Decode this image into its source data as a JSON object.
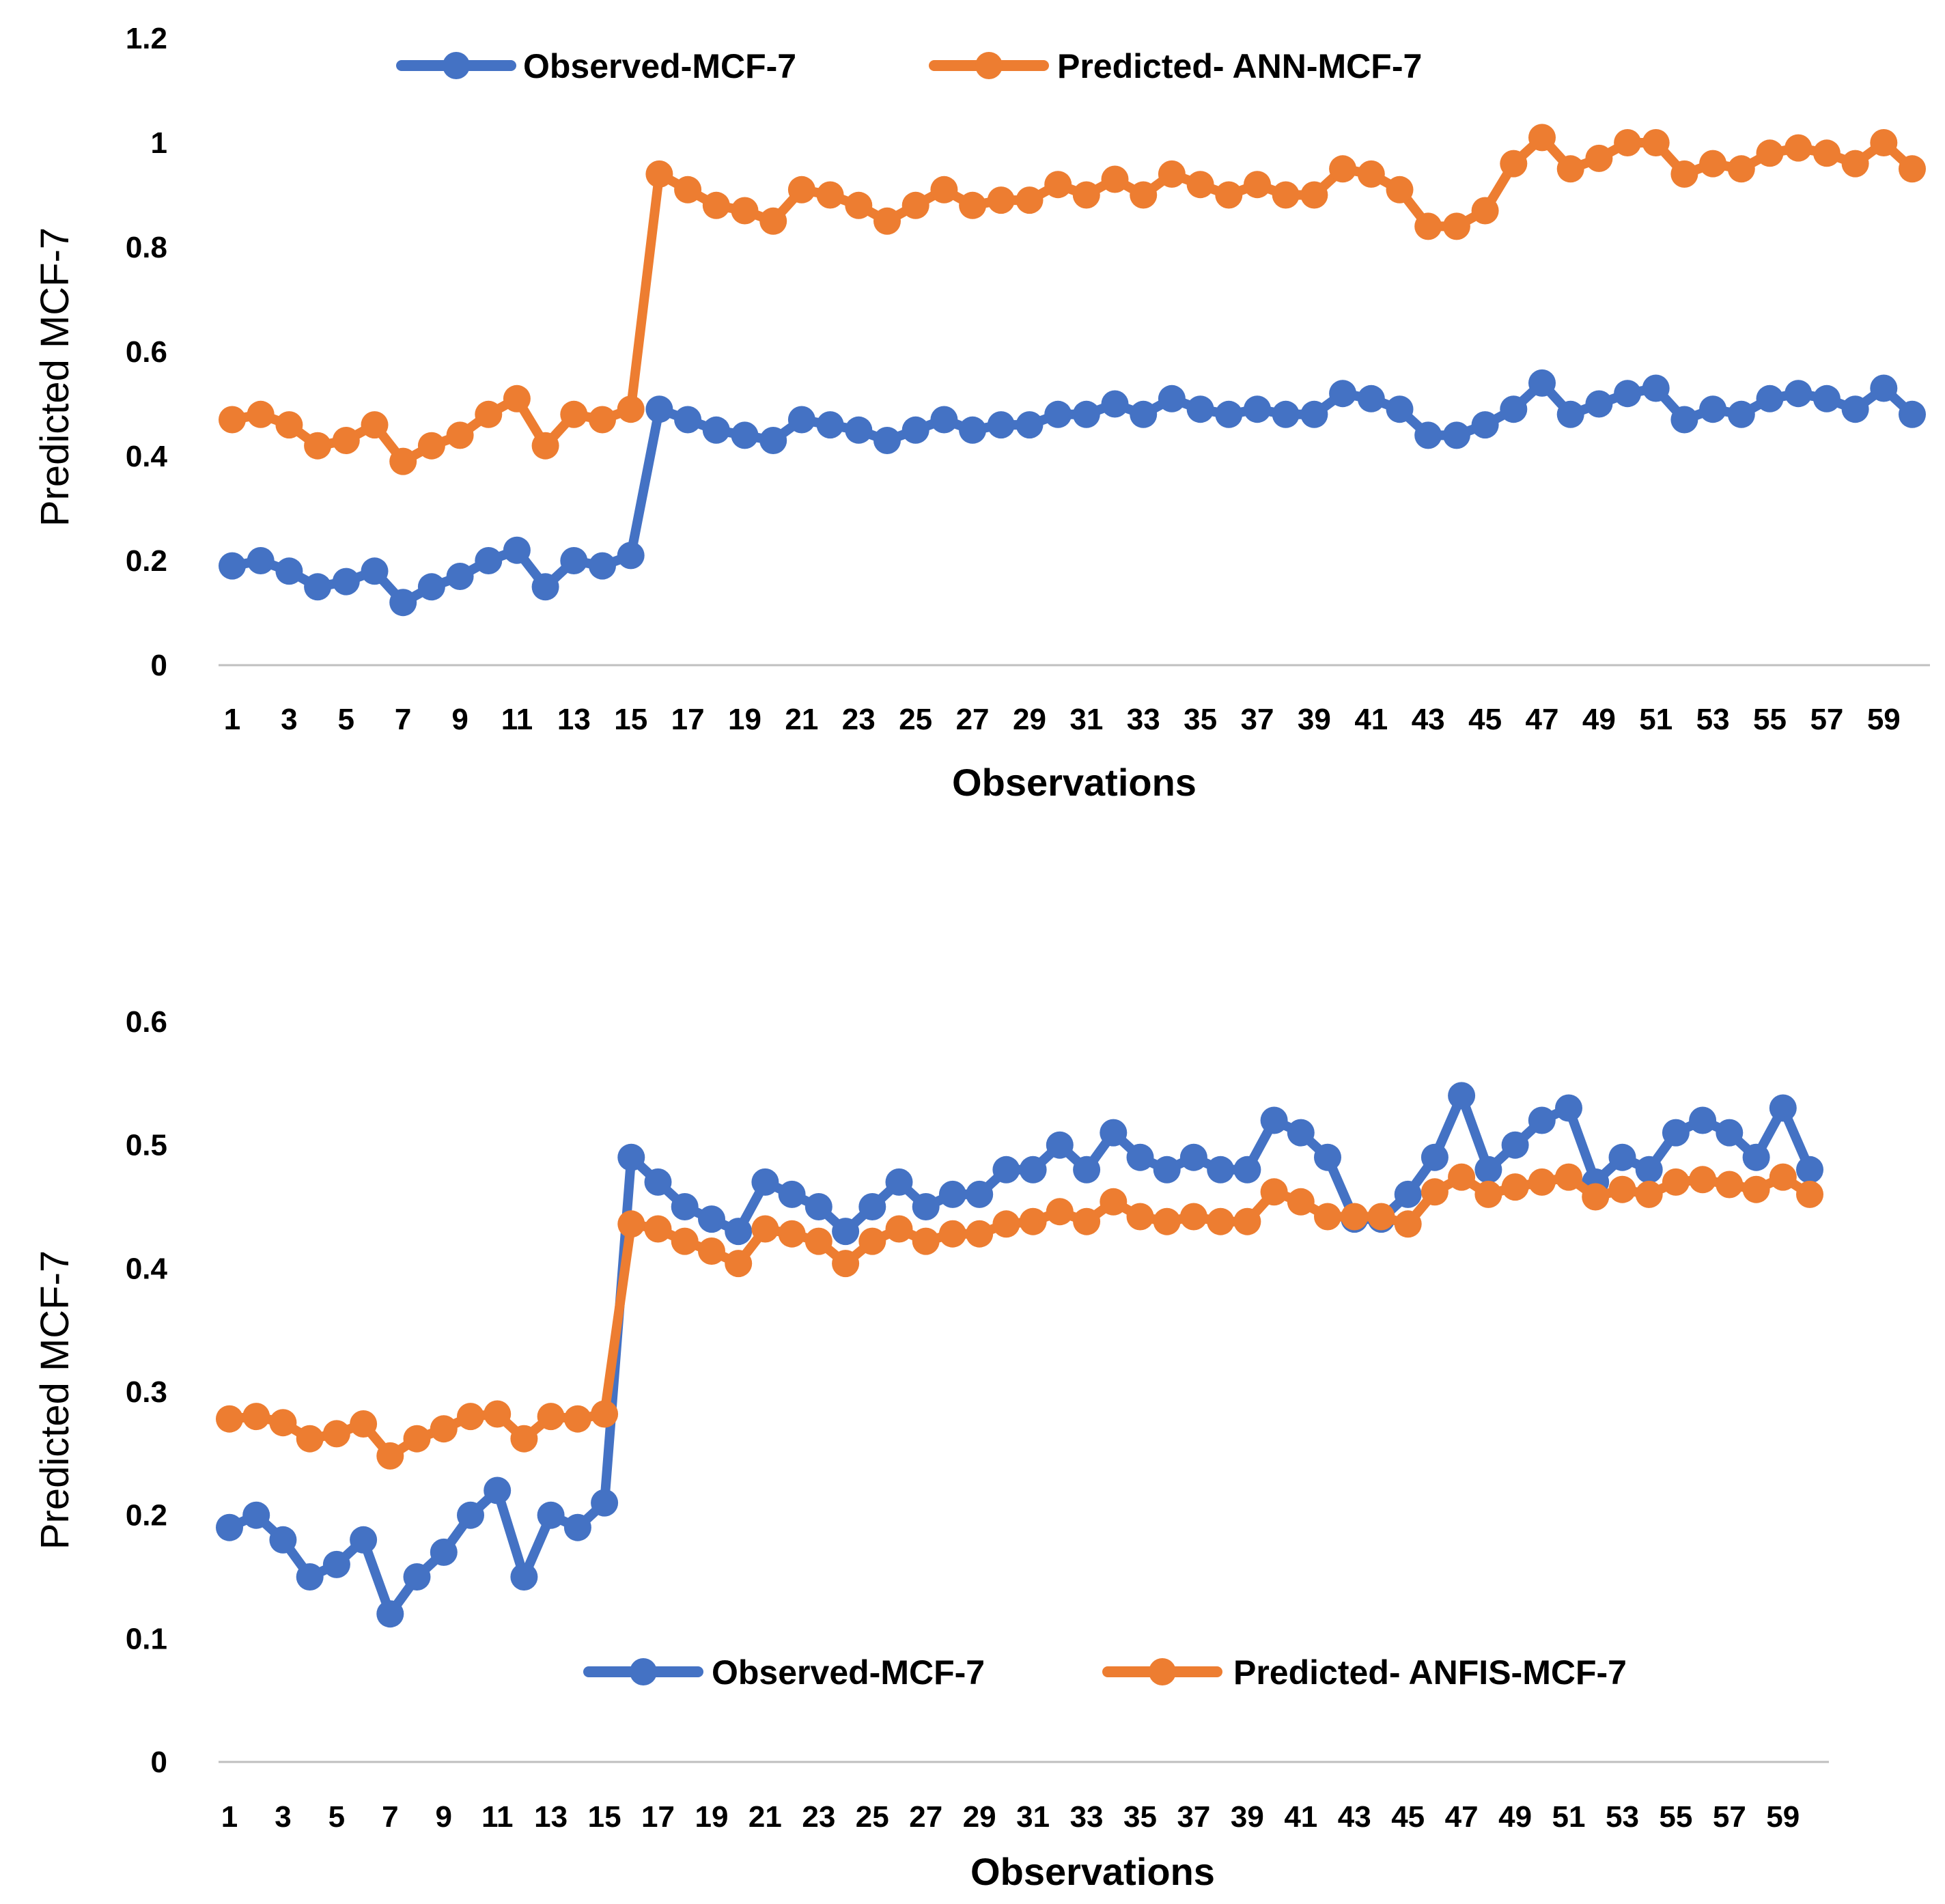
{
  "colors": {
    "observed": "#4472C4",
    "predicted": "#ED7D31",
    "axis": "#BFBFBF"
  },
  "chart_data": [
    {
      "type": "line",
      "title": "",
      "xlabel": "Observations",
      "ylabel": "Predicted MCF-7",
      "ylim": [
        0,
        1.2
      ],
      "yticks": [
        "0",
        "0.2",
        "0.4",
        "0.6",
        "0.8",
        "1",
        "1.2"
      ],
      "xticks": [
        "1",
        "3",
        "5",
        "7",
        "9",
        "11",
        "13",
        "15",
        "17",
        "19",
        "21",
        "23",
        "25",
        "27",
        "29",
        "31",
        "33",
        "35",
        "37",
        "39",
        "41",
        "43",
        "45",
        "47",
        "49",
        "51",
        "53",
        "55",
        "57",
        "59"
      ],
      "legend": "top",
      "x": [
        1,
        2,
        3,
        4,
        5,
        6,
        7,
        8,
        9,
        10,
        11,
        12,
        13,
        14,
        15,
        16,
        17,
        18,
        19,
        20,
        21,
        22,
        23,
        24,
        25,
        26,
        27,
        28,
        29,
        30,
        31,
        32,
        33,
        34,
        35,
        36,
        37,
        38,
        39,
        40,
        41,
        42,
        43,
        44,
        45,
        46,
        47,
        48,
        49,
        50,
        51,
        52,
        53,
        54,
        55,
        56,
        57,
        58,
        59,
        60
      ],
      "series": [
        {
          "name": "Observed-MCF-7",
          "values": [
            0.19,
            0.2,
            0.18,
            0.15,
            0.16,
            0.18,
            0.12,
            0.15,
            0.17,
            0.2,
            0.22,
            0.15,
            0.2,
            0.19,
            0.21,
            0.49,
            0.47,
            0.45,
            0.44,
            0.43,
            0.47,
            0.46,
            0.45,
            0.43,
            0.45,
            0.47,
            0.45,
            0.46,
            0.46,
            0.48,
            0.48,
            0.5,
            0.48,
            0.51,
            0.49,
            0.48,
            0.49,
            0.48,
            0.48,
            0.52,
            0.51,
            0.49,
            0.44,
            0.44,
            0.46,
            0.49,
            0.54,
            0.48,
            0.5,
            0.52,
            0.53,
            0.47,
            0.49,
            0.48,
            0.51,
            0.52,
            0.51,
            0.49,
            0.53,
            0.48
          ]
        },
        {
          "name": "Predicted- ANN-MCF-7",
          "values": [
            0.47,
            0.48,
            0.46,
            0.42,
            0.43,
            0.46,
            0.39,
            0.42,
            0.44,
            0.48,
            0.51,
            0.42,
            0.48,
            0.47,
            0.49,
            0.94,
            0.91,
            0.88,
            0.87,
            0.85,
            0.91,
            0.9,
            0.88,
            0.85,
            0.88,
            0.91,
            0.88,
            0.89,
            0.89,
            0.92,
            0.9,
            0.93,
            0.9,
            0.94,
            0.92,
            0.9,
            0.92,
            0.9,
            0.9,
            0.95,
            0.94,
            0.91,
            0.84,
            0.84,
            0.87,
            0.96,
            1.01,
            0.95,
            0.97,
            1.0,
            1.0,
            0.94,
            0.96,
            0.95,
            0.98,
            0.99,
            0.98,
            0.96,
            1.0,
            0.95
          ]
        }
      ]
    },
    {
      "type": "line",
      "title": "",
      "xlabel": "Observations",
      "ylabel": "Predicted MCF-7",
      "ylim": [
        0,
        0.6
      ],
      "yticks": [
        "0",
        "0.1",
        "0.2",
        "0.3",
        "0.4",
        "0.5",
        "0.6"
      ],
      "xticks": [
        "1",
        "3",
        "5",
        "7",
        "9",
        "11",
        "13",
        "15",
        "17",
        "19",
        "21",
        "23",
        "25",
        "27",
        "29",
        "31",
        "33",
        "35",
        "37",
        "39",
        "41",
        "43",
        "45",
        "47",
        "49",
        "51",
        "53",
        "55",
        "57",
        "59"
      ],
      "legend": "bottom-center",
      "x": [
        1,
        2,
        3,
        4,
        5,
        6,
        7,
        8,
        9,
        10,
        11,
        12,
        13,
        14,
        15,
        16,
        17,
        18,
        19,
        20,
        21,
        22,
        23,
        24,
        25,
        26,
        27,
        28,
        29,
        30,
        31,
        32,
        33,
        34,
        35,
        36,
        37,
        38,
        39,
        40,
        41,
        42,
        43,
        44,
        45,
        46,
        47,
        48,
        49,
        50,
        51,
        52,
        53,
        54,
        55,
        56,
        57,
        58,
        59,
        60
      ],
      "series": [
        {
          "name": "Observed-MCF-7",
          "values": [
            0.19,
            0.2,
            0.18,
            0.15,
            0.16,
            0.18,
            0.12,
            0.15,
            0.17,
            0.2,
            0.22,
            0.15,
            0.2,
            0.19,
            0.21,
            0.49,
            0.47,
            0.45,
            0.44,
            0.43,
            0.47,
            0.46,
            0.45,
            0.43,
            0.45,
            0.47,
            0.45,
            0.46,
            0.46,
            0.48,
            0.48,
            0.5,
            0.48,
            0.51,
            0.49,
            0.48,
            0.49,
            0.48,
            0.48,
            0.52,
            0.51,
            0.49,
            0.44,
            0.44,
            0.46,
            0.49,
            0.54,
            0.48,
            0.5,
            0.52,
            0.53,
            0.47,
            0.49,
            0.48,
            0.51,
            0.52,
            0.51,
            0.49,
            0.53,
            0.48
          ]
        },
        {
          "name": "Predicted- ANFIS-MCF-7",
          "values": [
            0.278,
            0.28,
            0.275,
            0.262,
            0.266,
            0.274,
            0.248,
            0.262,
            0.27,
            0.28,
            0.282,
            0.262,
            0.28,
            0.278,
            0.282,
            0.436,
            0.432,
            0.422,
            0.414,
            0.404,
            0.432,
            0.428,
            0.422,
            0.404,
            0.422,
            0.432,
            0.422,
            0.428,
            0.428,
            0.436,
            0.438,
            0.446,
            0.438,
            0.454,
            0.442,
            0.438,
            0.442,
            0.438,
            0.438,
            0.462,
            0.454,
            0.442,
            0.442,
            0.442,
            0.436,
            0.462,
            0.474,
            0.46,
            0.466,
            0.47,
            0.474,
            0.458,
            0.464,
            0.46,
            0.47,
            0.472,
            0.468,
            0.464,
            0.474,
            0.46
          ]
        }
      ]
    }
  ]
}
